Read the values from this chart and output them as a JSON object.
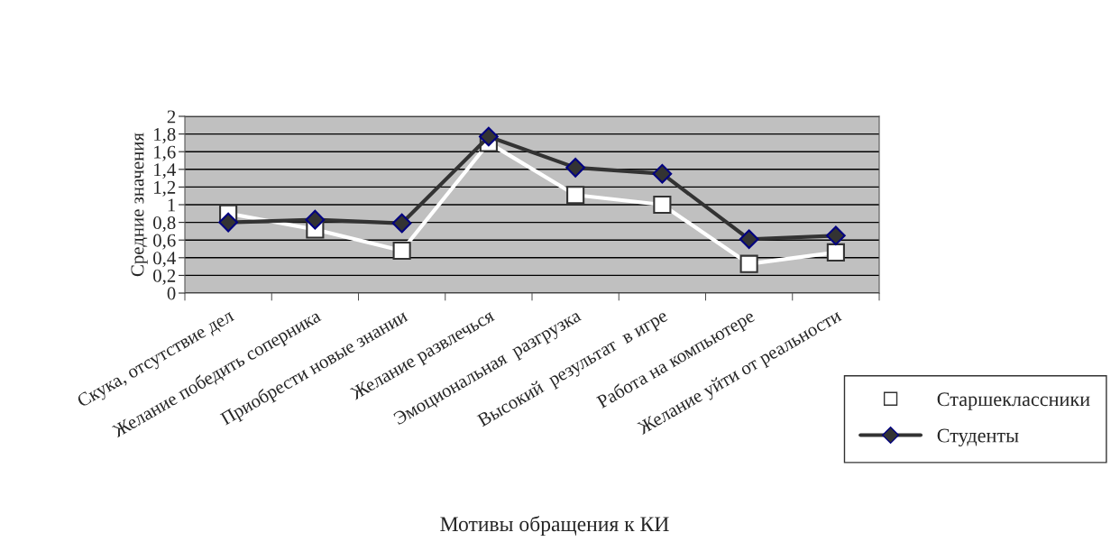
{
  "chart_data": {
    "type": "line",
    "xlabel": "Мотивы обращения к КИ",
    "ylabel": "Средние значения",
    "categories": [
      "Скука, отсутствие дел",
      "Желание победить соперника",
      "Приобрести новые знании",
      "Желание развлечься",
      "Эмоциональная  разгрузка",
      "Высокий  результат  в игре",
      "Работа на компьютере",
      "Желание уйти от реальности"
    ],
    "series": [
      {
        "name": "Старшеклассники",
        "color": "#ffffff",
        "marker": "square",
        "values": [
          0.9,
          0.72,
          0.48,
          1.7,
          1.11,
          1.0,
          0.33,
          0.46
        ]
      },
      {
        "name": "Студенты",
        "color": "#333333",
        "marker": "diamond",
        "values": [
          0.8,
          0.83,
          0.79,
          1.77,
          1.42,
          1.35,
          0.61,
          0.65
        ]
      }
    ],
    "ylim": [
      0,
      2
    ],
    "yticks": [
      0,
      {
        "value": 0.2,
        "label": "0,2"
      },
      {
        "value": 0.4,
        "label": "0,4"
      },
      {
        "value": 0.6,
        "label": "0,6"
      },
      {
        "value": 0.8,
        "label": "0,8"
      },
      1,
      {
        "value": 1.2,
        "label": "1,2"
      },
      {
        "value": 1.4,
        "label": "1,4"
      },
      {
        "value": 1.6,
        "label": "1,6"
      },
      {
        "value": 1.8,
        "label": "1,8"
      },
      2
    ],
    "grid": "y",
    "legend": "bottom right"
  }
}
